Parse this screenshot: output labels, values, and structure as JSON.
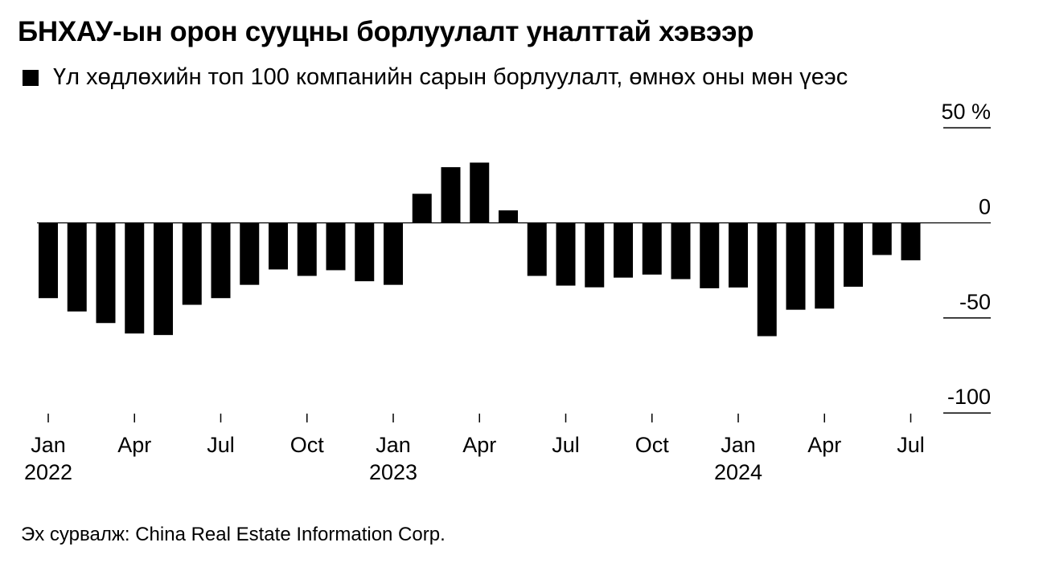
{
  "header": {
    "title": "БНХАУ-ын орон сууцны борлуулалт уналттай хэвээр",
    "subtitle": "Үл хөдлөхийн топ 100 компанийн сарын борлуулалт, өмнөх оны мөн үеэс"
  },
  "footer": {
    "source": "Эх сурвалж:  China Real Estate Information Corp."
  },
  "chart_data": {
    "type": "bar",
    "title": "БНХАУ-ын орон сууцны борлуулалт уналттай хэвээр",
    "subtitle": "Үл хөдлөхийн топ 100 компанийн сарын борлуулалт, өмнөх оны мөн үеэс",
    "series": [
      {
        "name": "Үл хөдлөхийн топ 100 компанийн сарын борлуулалт, өмнөх оны мөн үеэс",
        "color": "#000000",
        "x": [
          "2022-01",
          "2022-02",
          "2022-03",
          "2022-04",
          "2022-05",
          "2022-06",
          "2022-07",
          "2022-08",
          "2022-09",
          "2022-10",
          "2022-11",
          "2022-12",
          "2023-01",
          "2023-02",
          "2023-03",
          "2023-04",
          "2023-05",
          "2023-06",
          "2023-07",
          "2023-08",
          "2023-09",
          "2023-10",
          "2023-11",
          "2023-12",
          "2024-01",
          "2024-02",
          "2024-03",
          "2024-04",
          "2024-05",
          "2024-06",
          "2024-07",
          "2024-08"
        ],
        "values": [
          -39.6,
          -46.6,
          -52.7,
          -58.2,
          -59.0,
          -43.1,
          -39.6,
          -32.6,
          -24.5,
          -27.9,
          -24.9,
          -30.7,
          -32.6,
          15.3,
          29.3,
          31.7,
          6.6,
          -27.9,
          -33.0,
          -33.9,
          -28.8,
          -27.2,
          -29.6,
          -34.4,
          -34.0,
          -59.6,
          -45.7,
          -45.1,
          -33.6,
          -16.9,
          -19.7,
          null
        ]
      }
    ],
    "ylabel": "%",
    "ylim": [
      -100,
      50
    ],
    "yticks": [
      "50 %",
      "0",
      "-50",
      "-100"
    ],
    "xticks": [
      {
        "month": "Jan",
        "year": "2022"
      },
      {
        "month": "Apr",
        "year": ""
      },
      {
        "month": "Jul",
        "year": ""
      },
      {
        "month": "Oct",
        "year": ""
      },
      {
        "month": "Jan",
        "year": "2023"
      },
      {
        "month": "Apr",
        "year": ""
      },
      {
        "month": "Jul",
        "year": ""
      },
      {
        "month": "Oct",
        "year": ""
      },
      {
        "month": "Jan",
        "year": "2024"
      },
      {
        "month": "Apr",
        "year": ""
      },
      {
        "month": "Jul",
        "year": ""
      }
    ],
    "grid": false,
    "legend": "top-left"
  }
}
